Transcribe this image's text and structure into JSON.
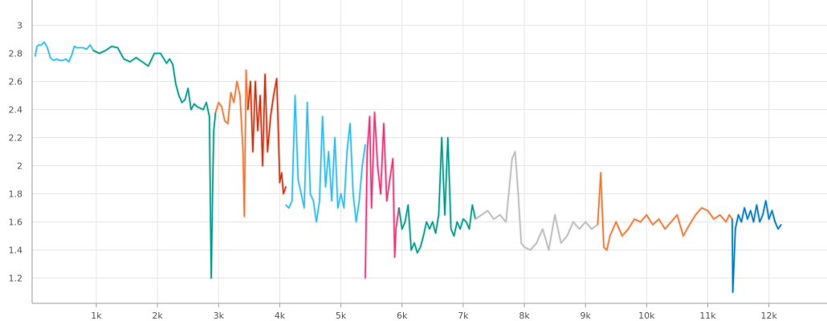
{
  "chart_data": {
    "type": "line",
    "title": "",
    "xlabel": "",
    "ylabel": "",
    "xlim": [
      -50,
      12950
    ],
    "ylim": [
      1.02,
      3.18
    ],
    "grid": true,
    "legend": "none",
    "x_ticks": [
      {
        "value": 1000,
        "label": "1k"
      },
      {
        "value": 2000,
        "label": "2k"
      },
      {
        "value": 3000,
        "label": "3k"
      },
      {
        "value": 4000,
        "label": "4k"
      },
      {
        "value": 5000,
        "label": "5k"
      },
      {
        "value": 6000,
        "label": "6k"
      },
      {
        "value": 7000,
        "label": "7k"
      },
      {
        "value": 8000,
        "label": "8k"
      },
      {
        "value": 9000,
        "label": "9k"
      },
      {
        "value": 10000,
        "label": "10k"
      },
      {
        "value": 11000,
        "label": "11k"
      },
      {
        "value": 12000,
        "label": "12k"
      }
    ],
    "y_ticks": [
      {
        "value": 1.2,
        "label": "1.2"
      },
      {
        "value": 1.4,
        "label": "1.4"
      },
      {
        "value": 1.6,
        "label": "1.6"
      },
      {
        "value": 1.8,
        "label": "1.8"
      },
      {
        "value": 2.0,
        "label": "2"
      },
      {
        "value": 2.2,
        "label": "2.2"
      },
      {
        "value": 2.4,
        "label": "2.4"
      },
      {
        "value": 2.6,
        "label": "2.6"
      },
      {
        "value": 2.8,
        "label": "2.8"
      },
      {
        "value": 3.0,
        "label": "3"
      }
    ],
    "series": [
      {
        "color": "#33bbee",
        "x": [
          0,
          30,
          60,
          100,
          150,
          200,
          250,
          300,
          350,
          400,
          450,
          500,
          550,
          600,
          640,
          680,
          720,
          780,
          840,
          900,
          950
        ],
        "y": [
          2.78,
          2.85,
          2.86,
          2.86,
          2.88,
          2.84,
          2.77,
          2.75,
          2.76,
          2.75,
          2.75,
          2.76,
          2.74,
          2.79,
          2.85,
          2.84,
          2.84,
          2.84,
          2.83,
          2.86,
          2.82
        ]
      },
      {
        "color": "#009988",
        "x": [
          950,
          1050,
          1150,
          1250,
          1350,
          1450,
          1550,
          1650,
          1750,
          1850,
          1950,
          2050,
          2150,
          2200,
          2250,
          2300,
          2350,
          2400,
          2450,
          2500,
          2550,
          2600,
          2650,
          2700,
          2750,
          2800,
          2850,
          2880,
          2900,
          2920,
          2950
        ],
        "y": [
          2.82,
          2.8,
          2.82,
          2.85,
          2.84,
          2.76,
          2.74,
          2.77,
          2.74,
          2.71,
          2.8,
          2.8,
          2.73,
          2.76,
          2.72,
          2.58,
          2.5,
          2.45,
          2.47,
          2.55,
          2.4,
          2.44,
          2.42,
          2.41,
          2.4,
          2.45,
          2.35,
          1.2,
          1.8,
          2.25,
          2.38
        ]
      },
      {
        "color": "#ee7733",
        "x": [
          2950,
          3000,
          3050,
          3100,
          3150,
          3200,
          3250,
          3300,
          3350,
          3400,
          3420,
          3450,
          3480
        ],
        "y": [
          2.38,
          2.45,
          2.42,
          2.32,
          2.3,
          2.52,
          2.45,
          2.6,
          2.5,
          2.1,
          1.64,
          2.68,
          2.4
        ]
      },
      {
        "color": "#cc3311",
        "x": [
          3480,
          3520,
          3560,
          3600,
          3640,
          3680,
          3720,
          3760,
          3800,
          3850,
          3900,
          3950,
          3980,
          4000,
          4030,
          4060,
          4100
        ],
        "y": [
          2.4,
          2.6,
          2.1,
          2.6,
          2.25,
          2.5,
          2.0,
          2.65,
          2.1,
          2.35,
          2.5,
          2.62,
          2.2,
          1.88,
          1.95,
          1.8,
          1.85
        ]
      },
      {
        "color": "#33bbee",
        "x": [
          4100,
          4150,
          4200,
          4250,
          4300,
          4350,
          4400,
          4450,
          4500,
          4550,
          4600,
          4650,
          4700,
          4750,
          4800,
          4850,
          4900,
          4950,
          5000,
          5050,
          5100,
          5150,
          5200,
          5250,
          5300,
          5350,
          5400
        ],
        "y": [
          1.72,
          1.7,
          1.75,
          2.5,
          1.9,
          1.8,
          1.7,
          2.45,
          1.8,
          1.75,
          1.6,
          1.75,
          2.35,
          1.85,
          2.1,
          1.75,
          2.2,
          1.7,
          1.8,
          1.7,
          2.1,
          2.3,
          1.8,
          1.6,
          1.75,
          2.0,
          2.15
        ]
      },
      {
        "color": "#ee3377",
        "x": [
          5400,
          5430,
          5470,
          5500,
          5550,
          5600,
          5650,
          5700,
          5750,
          5800,
          5850,
          5880,
          5900,
          5950
        ],
        "y": [
          1.2,
          2.1,
          2.35,
          1.7,
          2.38,
          2.0,
          1.8,
          2.3,
          1.75,
          1.9,
          2.05,
          1.35,
          1.55,
          1.7
        ]
      },
      {
        "color": "#009988",
        "x": [
          5950,
          6000,
          6050,
          6100,
          6150,
          6200,
          6250,
          6300,
          6350,
          6400,
          6450,
          6500,
          6550,
          6600,
          6650,
          6700,
          6750,
          6800,
          6850,
          6900,
          6950,
          7000,
          7050,
          7100,
          7150,
          7200
        ],
        "y": [
          1.7,
          1.55,
          1.6,
          1.72,
          1.4,
          1.45,
          1.38,
          1.42,
          1.5,
          1.6,
          1.55,
          1.6,
          1.52,
          1.65,
          2.2,
          1.65,
          2.2,
          1.55,
          1.5,
          1.6,
          1.55,
          1.62,
          1.6,
          1.55,
          1.72,
          1.62
        ]
      },
      {
        "color": "#bbbbbb",
        "x": [
          7200,
          7300,
          7400,
          7500,
          7600,
          7700,
          7800,
          7850,
          7900,
          7950,
          8000,
          8100,
          8200,
          8300,
          8400,
          8500,
          8600,
          8700,
          8800,
          8900,
          9000,
          9100,
          9200
        ],
        "y": [
          1.62,
          1.65,
          1.68,
          1.62,
          1.65,
          1.6,
          2.05,
          2.1,
          1.8,
          1.45,
          1.42,
          1.4,
          1.45,
          1.55,
          1.4,
          1.65,
          1.45,
          1.5,
          1.6,
          1.55,
          1.6,
          1.55,
          1.58
        ]
      },
      {
        "color": "#ee7733",
        "x": [
          9200,
          9250,
          9300,
          9350,
          9400,
          9500,
          9600,
          9700,
          9800,
          9900,
          10000,
          10100,
          10200,
          10300,
          10400,
          10500,
          10600,
          10700,
          10800,
          10900,
          11000,
          11100,
          11200,
          11300,
          11350,
          11400
        ],
        "y": [
          1.58,
          1.95,
          1.42,
          1.4,
          1.5,
          1.6,
          1.5,
          1.55,
          1.62,
          1.6,
          1.65,
          1.58,
          1.62,
          1.55,
          1.6,
          1.65,
          1.5,
          1.58,
          1.65,
          1.7,
          1.68,
          1.62,
          1.65,
          1.6,
          1.65,
          1.62
        ]
      },
      {
        "color": "#0077bb",
        "x": [
          11400,
          11410,
          11450,
          11500,
          11550,
          11600,
          11650,
          11700,
          11750,
          11800,
          11850,
          11900,
          11950,
          12000,
          12050,
          12100,
          12150,
          12200
        ],
        "y": [
          1.62,
          1.1,
          1.55,
          1.65,
          1.6,
          1.7,
          1.62,
          1.68,
          1.6,
          1.72,
          1.6,
          1.65,
          1.75,
          1.62,
          1.68,
          1.6,
          1.55,
          1.58
        ]
      }
    ]
  }
}
